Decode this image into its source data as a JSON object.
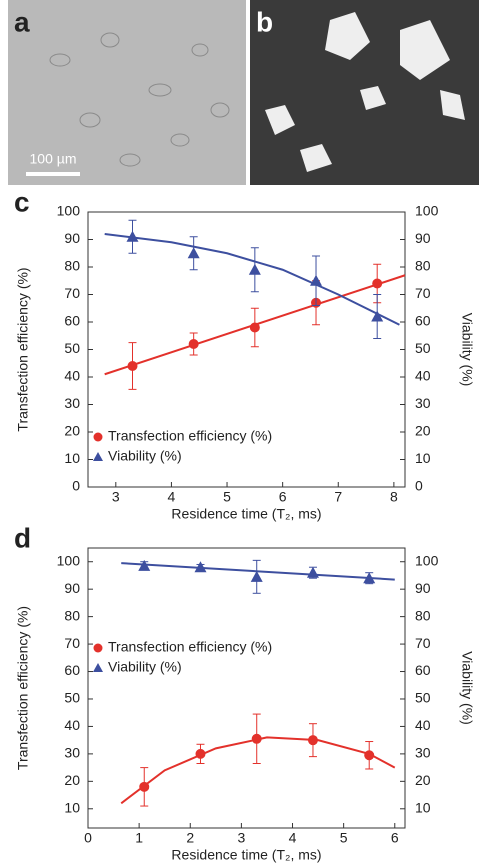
{
  "image_panels": [
    {
      "label": "a",
      "scale_bar": "100 µm"
    },
    {
      "label": "b"
    }
  ],
  "chart_data": [
    {
      "type": "scatter",
      "panel_label": "c",
      "x_label": "Residence time (T₂, ms)",
      "y_label": "Transfection efficiency (%)",
      "y2_label": "Viability (%)",
      "x": [
        3.3,
        4.4,
        5.5,
        6.6,
        7.7
      ],
      "xlim": [
        2.5,
        8.2
      ],
      "xticks": [
        3,
        4,
        5,
        6,
        7,
        8
      ],
      "ylim": [
        0,
        100
      ],
      "yticks": [
        0,
        10,
        20,
        30,
        40,
        50,
        60,
        70,
        80,
        90,
        100
      ],
      "y2lim": [
        0,
        100
      ],
      "y2ticks": [
        0,
        10,
        20,
        30,
        40,
        50,
        60,
        70,
        80,
        90,
        100
      ],
      "legend": "lower left",
      "series": [
        {
          "name": "Transfection efficiency (%)",
          "color": "#e3312b",
          "marker": "circle",
          "values": [
            44,
            52,
            58,
            67,
            74
          ],
          "errors": [
            8.5,
            4,
            7,
            8,
            7
          ]
        },
        {
          "name": "Viability (%)",
          "color": "#3d4f9f",
          "marker": "triangle",
          "axis": "y2",
          "values": [
            91,
            85,
            79,
            75,
            62
          ],
          "errors": [
            6,
            6,
            8,
            9,
            8
          ]
        }
      ],
      "fits": [
        {
          "color": "#e3312b",
          "x": [
            2.8,
            8.2
          ],
          "values": [
            41,
            77
          ]
        },
        {
          "color": "#3d4f9f",
          "axis": "y2",
          "x": [
            2.8,
            4,
            5,
            6,
            7,
            8.1
          ],
          "values": [
            92,
            89,
            85,
            79,
            70,
            59
          ]
        }
      ]
    },
    {
      "type": "scatter",
      "panel_label": "d",
      "x_label": "Residence time (T₂, ms)",
      "y_label": "Transfection efficiency (%)",
      "y2_label": "Viability (%)",
      "x": [
        1.1,
        2.2,
        3.3,
        4.4,
        5.5
      ],
      "xlim": [
        0,
        6.2
      ],
      "xticks": [
        0,
        1,
        2,
        3,
        4,
        5,
        6
      ],
      "ylim": [
        3,
        105
      ],
      "yticks": [
        10,
        20,
        30,
        40,
        50,
        60,
        70,
        80,
        90,
        100
      ],
      "y2lim": [
        3,
        105
      ],
      "y2ticks": [
        10,
        20,
        30,
        40,
        50,
        60,
        70,
        80,
        90,
        100
      ],
      "legend": "center left",
      "series": [
        {
          "name": "Transfection efficiency (%)",
          "color": "#e3312b",
          "marker": "circle",
          "values": [
            18,
            30,
            35.5,
            35,
            29.5
          ],
          "errors": [
            7,
            3.5,
            9,
            6,
            5
          ]
        },
        {
          "name": "Viability (%)",
          "color": "#3d4f9f",
          "marker": "triangle",
          "axis": "y2",
          "values": [
            98.5,
            98,
            94.5,
            96,
            94
          ],
          "errors": [
            1.5,
            1,
            6,
            2,
            2
          ]
        }
      ],
      "fits": [
        {
          "color": "#e3312b",
          "x": [
            0.65,
            1.5,
            2.5,
            3.5,
            4.5,
            5.5,
            6
          ],
          "values": [
            12,
            24,
            32,
            36,
            35,
            30,
            25
          ]
        },
        {
          "color": "#3d4f9f",
          "axis": "y2",
          "x": [
            0.65,
            6
          ],
          "values": [
            99.5,
            93.5
          ]
        }
      ]
    }
  ]
}
